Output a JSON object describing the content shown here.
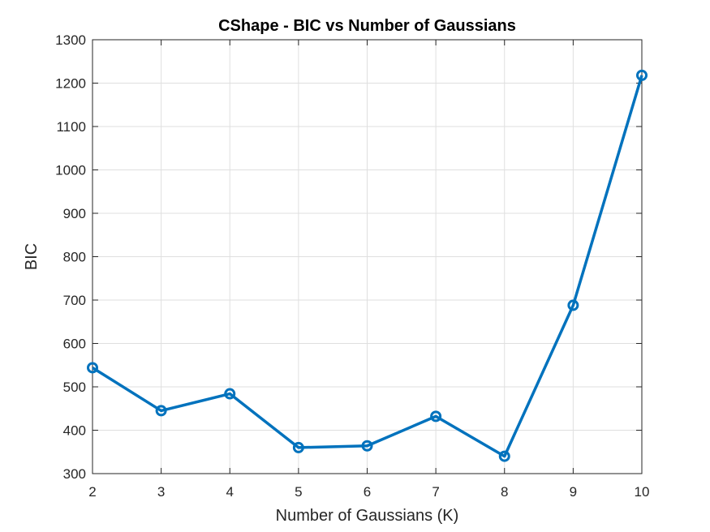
{
  "chart_data": {
    "type": "line",
    "title": "CShape - BIC vs Number of Gaussians",
    "xlabel": "Number of Gaussians (K)",
    "ylabel": "BIC",
    "xlim": [
      2,
      10
    ],
    "ylim": [
      300,
      1300
    ],
    "xticks": [
      2,
      3,
      4,
      5,
      6,
      7,
      8,
      9,
      10
    ],
    "yticks": [
      300,
      400,
      500,
      600,
      700,
      800,
      900,
      1000,
      1100,
      1200,
      1300
    ],
    "grid": true,
    "marker": "circle",
    "series": [
      {
        "x": [
          2,
          3,
          4,
          5,
          6,
          7,
          8,
          9,
          10
        ],
        "values": [
          544,
          445,
          484,
          360,
          364,
          432,
          340,
          688,
          1218
        ],
        "color": "#0072BD"
      }
    ]
  }
}
